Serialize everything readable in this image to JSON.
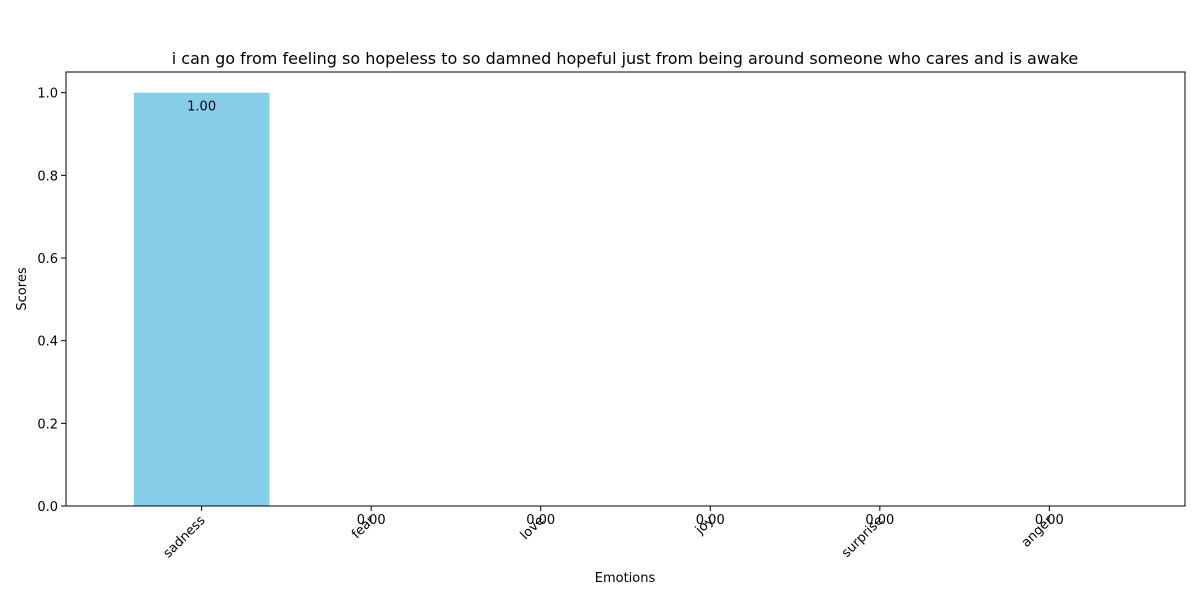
{
  "chart_data": {
    "type": "bar",
    "title": "i can go from feeling so hopeless to so damned hopeful just from being around someone who cares and is awake",
    "xlabel": "Emotions",
    "ylabel": "Scores",
    "categories": [
      "sadness",
      "fear",
      "love",
      "joy",
      "surprise",
      "anger"
    ],
    "values": [
      1.0,
      0.0,
      0.0,
      0.0,
      0.0,
      0.0
    ],
    "value_labels": [
      "1.00",
      "0.00",
      "0.00",
      "0.00",
      "0.00",
      "0.00"
    ],
    "yticks": [
      0.0,
      0.2,
      0.4,
      0.6,
      0.8,
      1.0
    ],
    "ytick_labels": [
      "0.0",
      "0.2",
      "0.4",
      "0.6",
      "0.8",
      "1.0"
    ],
    "ylim": [
      0,
      1.05
    ],
    "bar_color": "#87ceeb",
    "grid": false,
    "legend": "none"
  }
}
